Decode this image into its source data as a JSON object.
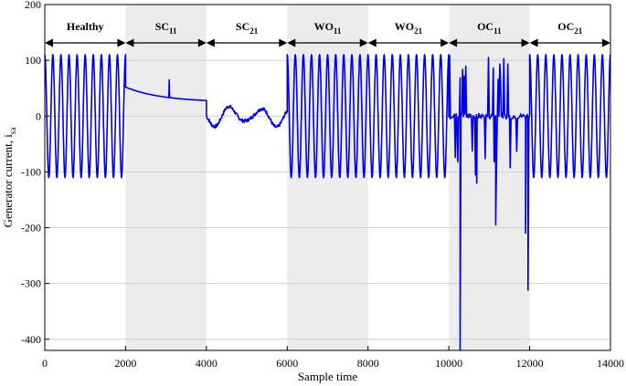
{
  "chart_data": {
    "type": "line",
    "title": "",
    "xlabel": "Sample time",
    "ylabel": "Generator current, i",
    "ylabel_sub": "sa",
    "xlim": [
      0,
      14000
    ],
    "ylim": [
      -420,
      200
    ],
    "x_ticks": [
      0,
      2000,
      4000,
      6000,
      8000,
      10000,
      12000,
      14000
    ],
    "y_ticks": [
      -400,
      -300,
      -200,
      -100,
      0,
      100,
      200
    ],
    "grid": "horizontal",
    "line_color": "#0000ee",
    "shade_color": "#ececec",
    "regions": [
      {
        "label": "Healthy",
        "sub": "",
        "start": 0,
        "end": 2000,
        "shaded": false
      },
      {
        "label": "SC",
        "sub": "11",
        "start": 2000,
        "end": 4000,
        "shaded": true
      },
      {
        "label": "SC",
        "sub": "21",
        "start": 4000,
        "end": 6000,
        "shaded": false
      },
      {
        "label": "WO",
        "sub": "11",
        "start": 6000,
        "end": 8000,
        "shaded": true
      },
      {
        "label": "WO",
        "sub": "21",
        "start": 8000,
        "end": 10000,
        "shaded": false
      },
      {
        "label": "OC",
        "sub": "11",
        "start": 10000,
        "end": 12000,
        "shaded": true
      },
      {
        "label": "OC",
        "sub": "21",
        "start": 12000,
        "end": 14000,
        "shaded": false
      }
    ],
    "series": [
      {
        "signal_segments": [
          {
            "start": 0,
            "end": 2000,
            "kind": "sine",
            "amplitude": 110,
            "period": 200
          },
          {
            "start": 2000,
            "end": 4000,
            "kind": "decay",
            "from": 52,
            "to": 28,
            "spike_x": 3080,
            "spike_y": 65
          },
          {
            "start": 4000,
            "end": 6000,
            "kind": "wavy",
            "mean": 0,
            "amplitude": 20,
            "min": -22,
            "max": 22
          },
          {
            "start": 6000,
            "end": 8000,
            "kind": "sine",
            "amplitude": 110,
            "period": 200
          },
          {
            "start": 8000,
            "end": 10000,
            "kind": "sine",
            "amplitude": 110,
            "period": 200
          },
          {
            "start": 10000,
            "end": 12000,
            "kind": "open-circuit",
            "max": 110,
            "min": -420
          },
          {
            "start": 12000,
            "end": 14000,
            "kind": "sine",
            "amplitude": 110,
            "period": 200
          }
        ]
      }
    ]
  }
}
